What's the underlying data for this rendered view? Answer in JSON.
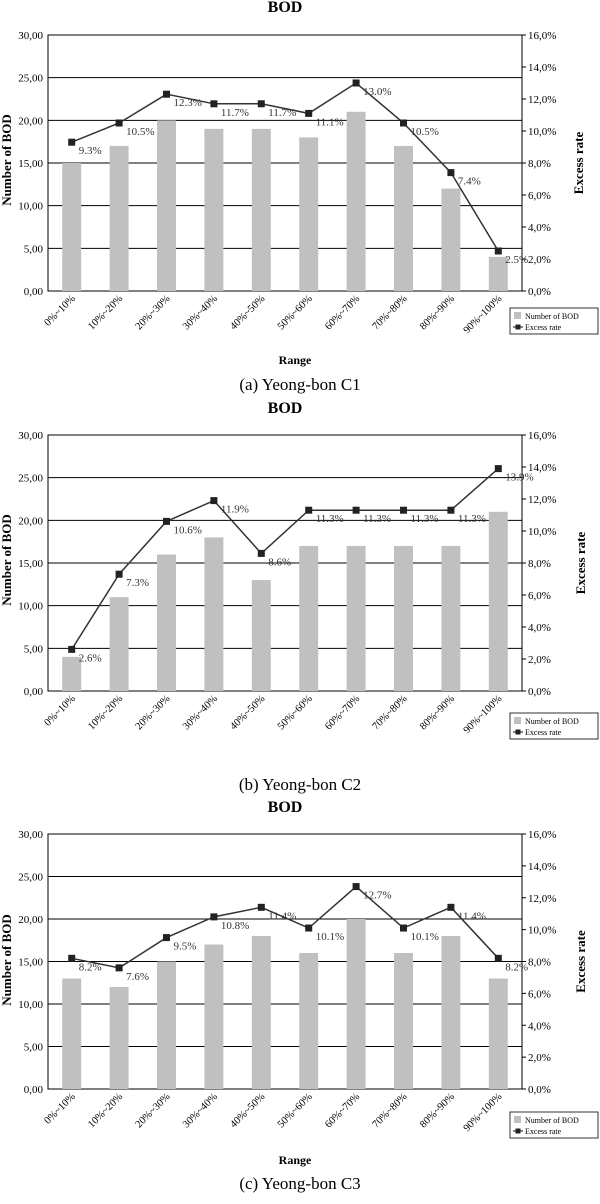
{
  "chart_data": [
    {
      "type": "bar",
      "title": "BOD",
      "caption": "(a)  Yeong-bon  C1",
      "categories": [
        "0%~10%",
        "10%~20%",
        "20%~30%",
        "30%~40%",
        "40%~50%",
        "50%~60%",
        "60%~70%",
        "70%~80%",
        "80%~90%",
        "90%~100%"
      ],
      "series": [
        {
          "name": "Number of BOD",
          "kind": "bar",
          "axis": "left",
          "values": [
            15,
            17,
            20,
            19,
            19,
            18,
            21,
            17,
            12,
            4
          ]
        },
        {
          "name": "Excess rate",
          "kind": "line",
          "axis": "right",
          "values": [
            9.3,
            10.5,
            12.3,
            11.7,
            11.7,
            11.1,
            13.0,
            10.5,
            7.4,
            2.5
          ],
          "labels": [
            "9.3%",
            "10.5%",
            "12.3%",
            "11.7%",
            "11.7%",
            "11.1%",
            "13.0%",
            "10.5%",
            "7.4%",
            "2.5%"
          ]
        }
      ],
      "xlabel": "Range",
      "ylabel": "Number of BOD",
      "y2label": "Excess rate",
      "ylim": [
        0,
        30
      ],
      "y2lim": [
        0,
        16
      ],
      "yticks": [
        "0,00",
        "5,00",
        "10,00",
        "15,00",
        "20,00",
        "25,00",
        "30,00"
      ],
      "y2ticks": [
        "0,0%",
        "2,0%",
        "4,0%",
        "6,0%",
        "8,0%",
        "10,0%",
        "12,0%",
        "14,0%",
        "16,0%"
      ],
      "grid": "horizontal",
      "legend": "bottom-right",
      "colors": {
        "bar": "#c0c0c0",
        "line": "#333333",
        "marker": "#222222"
      }
    },
    {
      "type": "bar",
      "title": "BOD",
      "caption": "(b)  Yeong-bon  C2",
      "categories": [
        "0%~10%",
        "10%~20%",
        "20%~30%",
        "30%~40%",
        "40%~50%",
        "50%~60%",
        "60%~70%",
        "70%~80%",
        "80%~90%",
        "90%~100%"
      ],
      "series": [
        {
          "name": "Number of BOD",
          "kind": "bar",
          "axis": "left",
          "values": [
            4,
            11,
            16,
            18,
            13,
            17,
            17,
            17,
            17,
            21
          ]
        },
        {
          "name": "Excess rate",
          "kind": "line",
          "axis": "right",
          "values": [
            2.6,
            7.3,
            10.6,
            11.9,
            8.6,
            11.3,
            11.3,
            11.3,
            11.3,
            13.9
          ],
          "labels": [
            "2.6%",
            "7.3%",
            "10.6%",
            "11.9%",
            "8.6%",
            "11.3%",
            "11.3%",
            "11.3%",
            "11.3%",
            "13.9%"
          ]
        }
      ],
      "xlabel": "",
      "ylabel": "Number  of BOD",
      "y2label": "Excess rate",
      "ylim": [
        0,
        30
      ],
      "y2lim": [
        0,
        16
      ],
      "yticks": [
        "0,00",
        "5,00",
        "10,00",
        "15,00",
        "20,00",
        "25,00",
        "30,00"
      ],
      "y2ticks": [
        "0,0%",
        "2,0%",
        "4,0%",
        "6,0%",
        "8,0%",
        "10,0%",
        "12,0%",
        "14,0%",
        "16,0%"
      ],
      "grid": "horizontal",
      "legend": "bottom-right",
      "colors": {
        "bar": "#c0c0c0",
        "line": "#333333",
        "marker": "#222222"
      }
    },
    {
      "type": "bar",
      "title": "BOD",
      "caption": "(c)  Yeong-bon  C3",
      "categories": [
        "0%~10%",
        "10%~20%",
        "20%~30%",
        "30%~40%",
        "40%~50%",
        "50%~60%",
        "60%~70%",
        "70%~80%",
        "80%~90%",
        "90%~100%"
      ],
      "series": [
        {
          "name": "Number of BOD",
          "kind": "bar",
          "axis": "left",
          "values": [
            13,
            12,
            15,
            17,
            18,
            16,
            20,
            16,
            18,
            13
          ]
        },
        {
          "name": "Excess rate",
          "kind": "line",
          "axis": "right",
          "values": [
            8.2,
            7.6,
            9.5,
            10.8,
            11.4,
            10.1,
            12.7,
            10.1,
            11.4,
            8.2
          ],
          "labels": [
            "8.2%",
            "7.6%",
            "9.5%",
            "10.8%",
            "11.4%",
            "10.1%",
            "12.7%",
            "10.1%",
            "11.4%",
            "8.2%"
          ]
        }
      ],
      "xlabel": "Range",
      "ylabel": "Number of BOD",
      "y2label": "Excess rate",
      "ylim": [
        0,
        30
      ],
      "y2lim": [
        0,
        16
      ],
      "yticks": [
        "0,00",
        "5,00",
        "10,00",
        "15,00",
        "20,00",
        "25,00",
        "30,00"
      ],
      "y2ticks": [
        "0,0%",
        "2,0%",
        "4,0%",
        "6,0%",
        "8,0%",
        "10,0%",
        "12,0%",
        "14,0%",
        "16,0%"
      ],
      "grid": "horizontal",
      "legend": "bottom-right",
      "colors": {
        "bar": "#c0c0c0",
        "line": "#333333",
        "marker": "#222222"
      }
    }
  ]
}
